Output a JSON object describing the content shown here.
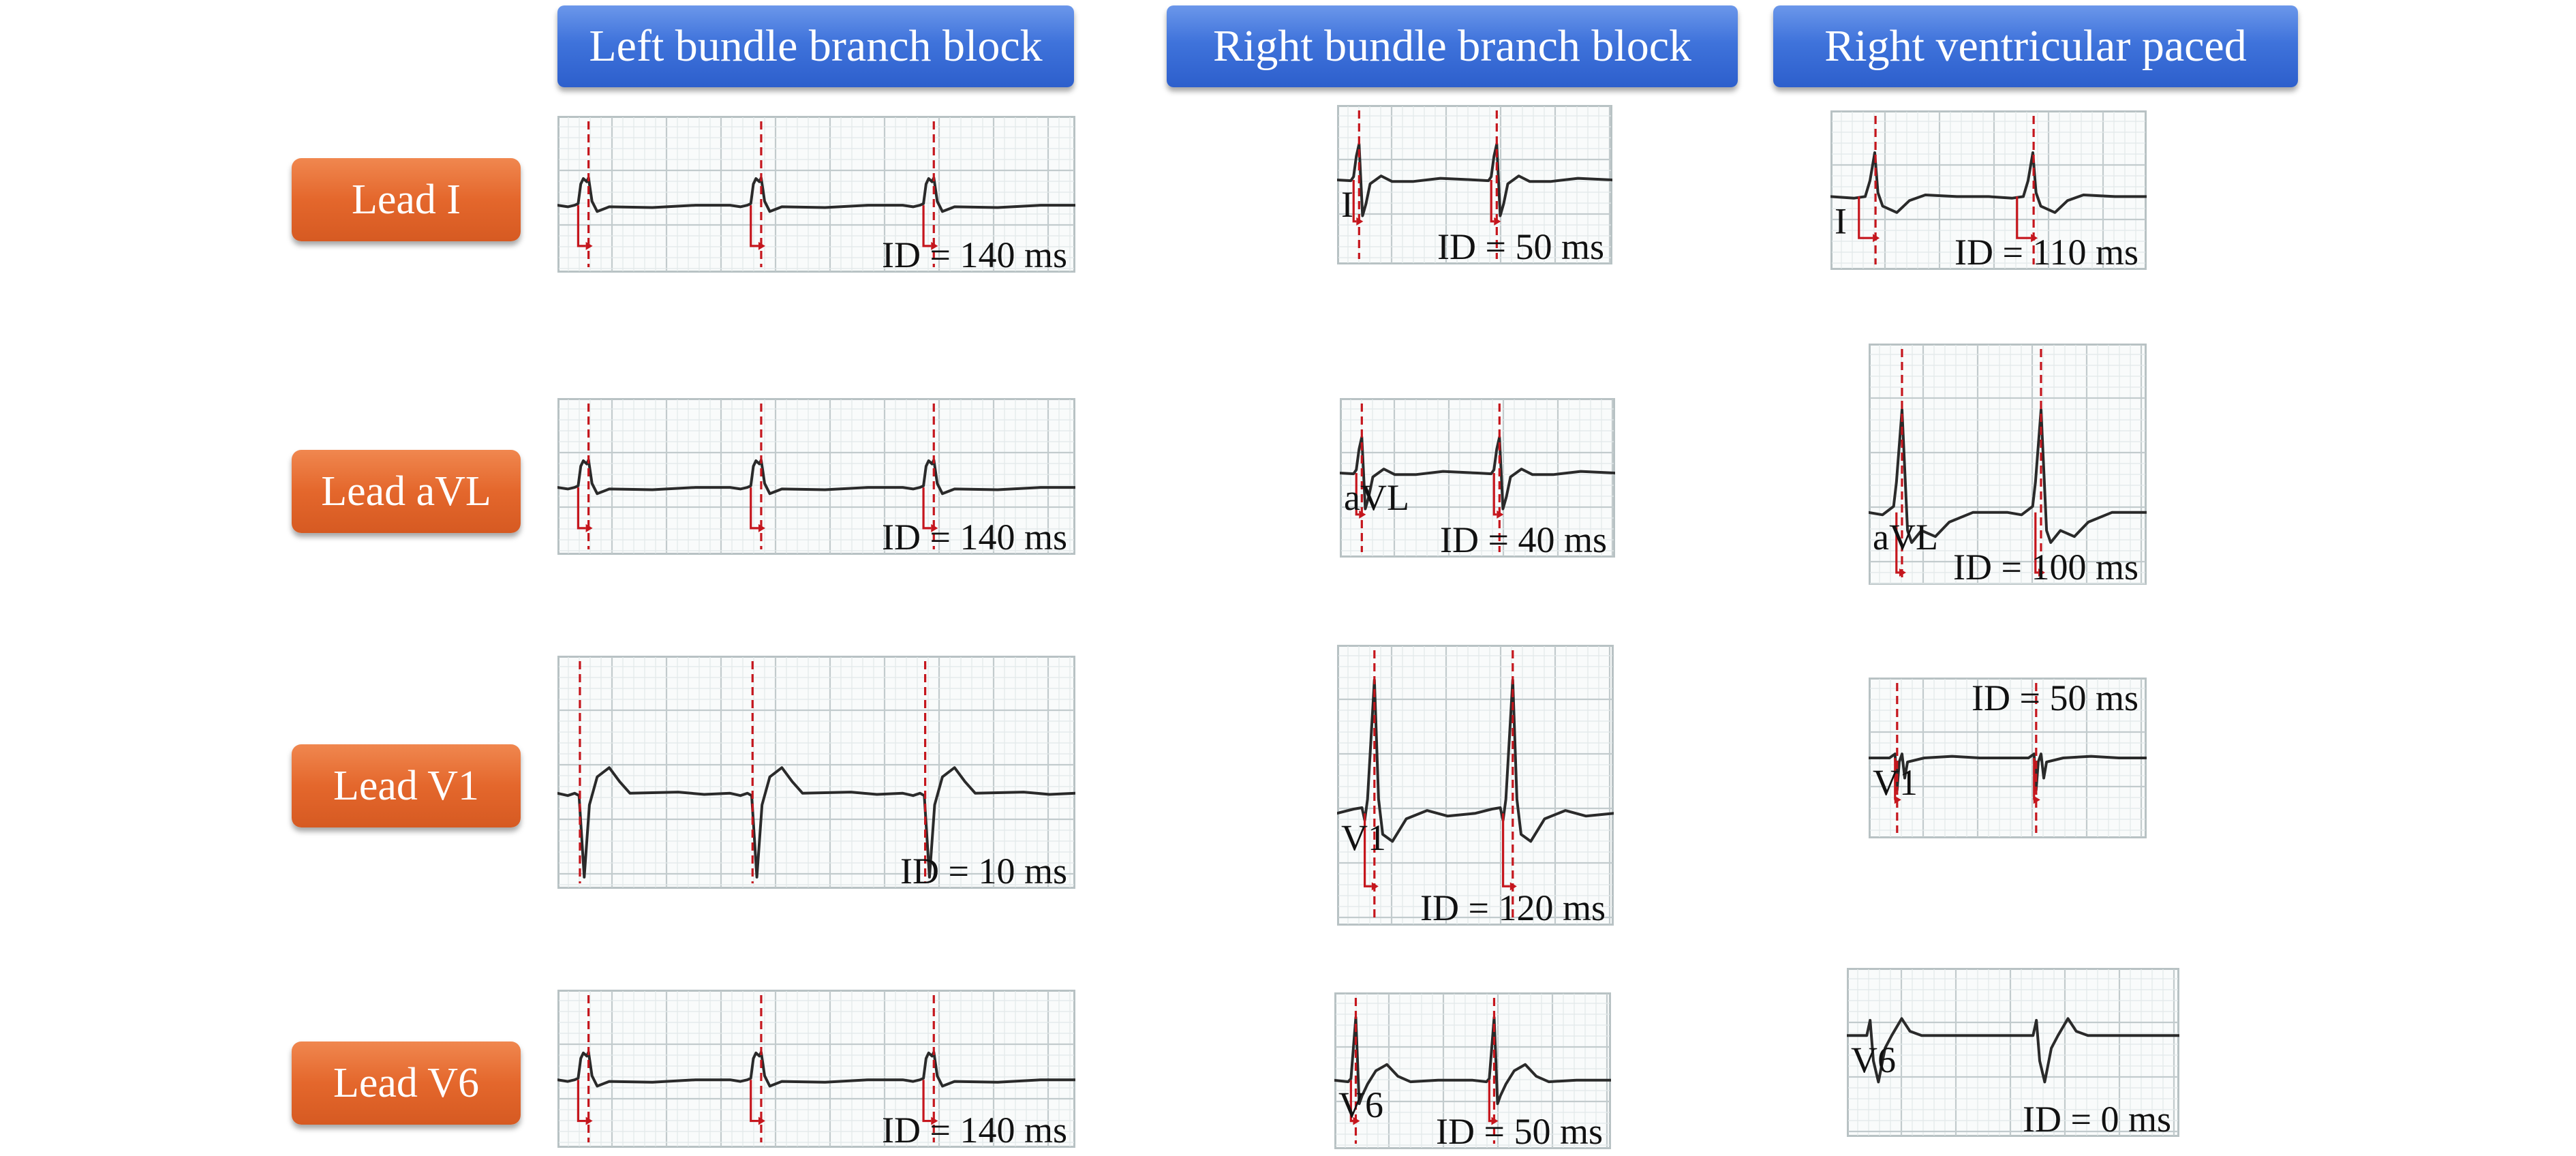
{
  "columns": [
    {
      "id": "lbbb",
      "title": "Left bundle branch block"
    },
    {
      "id": "rbbb",
      "title": "Right bundle branch block"
    },
    {
      "id": "rvp",
      "title": "Right ventricular paced"
    }
  ],
  "leads": [
    {
      "id": "I",
      "label": "Lead I"
    },
    {
      "id": "aVL",
      "label": "Lead aVL"
    },
    {
      "id": "V1",
      "label": "Lead V1"
    },
    {
      "id": "V6",
      "label": "Lead V6"
    }
  ],
  "panels": [
    {
      "name": "lbbb-lead-i",
      "id_text": "ID = 140 ms",
      "lead_text": "",
      "ecg": {
        "type": "lbbb-lat",
        "beats": 3
      },
      "showOnset": true
    },
    {
      "name": "lbbb-lead-avl",
      "id_text": "ID = 140 ms",
      "lead_text": "",
      "ecg": {
        "type": "lbbb-lat",
        "beats": 3
      },
      "showOnset": true
    },
    {
      "name": "lbbb-lead-v1",
      "id_text": "ID = 10 ms",
      "lead_text": "",
      "ecg": {
        "type": "lbbb-v1",
        "beats": 3
      },
      "showOnset": false
    },
    {
      "name": "lbbb-lead-v6",
      "id_text": "ID = 140 ms",
      "lead_text": "",
      "ecg": {
        "type": "lbbb-lat",
        "beats": 3
      },
      "showOnset": true
    },
    {
      "name": "rbbb-lead-i",
      "id_text": "ID = 50 ms",
      "lead_text": "I",
      "ecg": {
        "type": "rbbb-i",
        "beats": 2
      },
      "showOnset": true
    },
    {
      "name": "rbbb-lead-avl",
      "id_text": "ID = 40 ms",
      "lead_text": "aVL",
      "ecg": {
        "type": "rbbb-i",
        "beats": 2
      },
      "showOnset": true
    },
    {
      "name": "rbbb-lead-v1",
      "id_text": "ID = 120 ms",
      "lead_text": "V1",
      "ecg": {
        "type": "rbbb-v1",
        "beats": 2
      },
      "showOnset": true
    },
    {
      "name": "rbbb-lead-v6",
      "id_text": "ID = 50 ms",
      "lead_text": "V6",
      "ecg": {
        "type": "rbbb-v6",
        "beats": 2
      },
      "showOnset": true
    },
    {
      "name": "rvp-lead-i",
      "id_text": "ID = 110 ms",
      "lead_text": "I",
      "ecg": {
        "type": "rvp-i",
        "beats": 2
      },
      "showOnset": true
    },
    {
      "name": "rvp-lead-avl",
      "id_text": "ID = 100 ms",
      "lead_text": "aVL",
      "ecg": {
        "type": "rvp-avl",
        "beats": 2
      },
      "showOnset": true
    },
    {
      "name": "rvp-lead-v1",
      "id_text": "ID = 50 ms",
      "lead_text": "V1",
      "ecg": {
        "type": "rvp-v1",
        "beats": 2
      },
      "showOnset": true
    },
    {
      "name": "rvp-lead-v6",
      "id_text": "ID = 0 ms",
      "lead_text": "V6",
      "ecg": {
        "type": "rvp-v6",
        "beats": 2
      },
      "showOnset": false
    }
  ],
  "colors": {
    "header": "#3f73db",
    "lead_button": "#e4672c",
    "annotation": "#c5161d",
    "trace": "#2a2a2a",
    "grid": "#c2cbcd"
  }
}
